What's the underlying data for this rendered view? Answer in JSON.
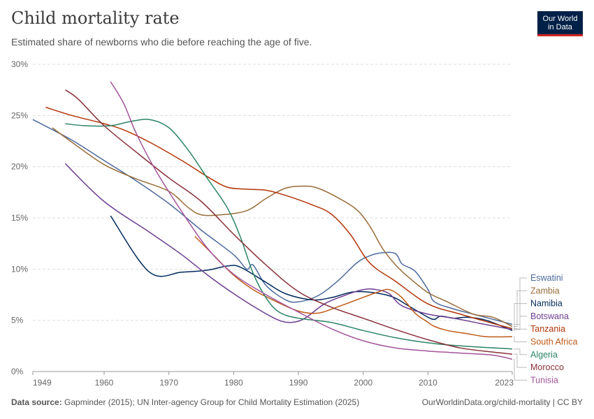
{
  "header": {
    "title": "Child mortality rate",
    "subtitle": "Estimated share of newborns who die before reaching the age of five.",
    "logo_line1": "Our World",
    "logo_line2": "in Data"
  },
  "footer": {
    "source_label": "Data source:",
    "source_text": "Gapminder (2015); UN Inter-agency Group for Child Mortality Estimation (2025)",
    "url_license": "OurWorldinData.org/child-mortality | CC BY"
  },
  "chart_data": {
    "type": "line",
    "title": "Child mortality rate",
    "xlabel": "",
    "ylabel": "",
    "xlim": [
      1949,
      2023
    ],
    "ylim": [
      0,
      30
    ],
    "grid": true,
    "x_ticks": [
      1949,
      1960,
      1970,
      1980,
      1990,
      2000,
      2010,
      2023
    ],
    "y_ticks": [
      0,
      5,
      10,
      15,
      20,
      25,
      30
    ],
    "y_tick_suffix": "%",
    "legend": "right (line-end labels)",
    "series": [
      {
        "name": "Eswatini",
        "color": "#4c6a9c",
        "points": [
          [
            1949,
            24.6
          ],
          [
            1955,
            22.6
          ],
          [
            1960,
            20.6
          ],
          [
            1965,
            18.6
          ],
          [
            1970,
            16.4
          ],
          [
            1975,
            13.8
          ],
          [
            1980,
            11.4
          ],
          [
            1982,
            10.0
          ],
          [
            1983,
            10.4
          ],
          [
            1985,
            8.4
          ],
          [
            1988,
            7.0
          ],
          [
            1990,
            6.8
          ],
          [
            1993,
            7.4
          ],
          [
            1996,
            8.8
          ],
          [
            1999,
            10.6
          ],
          [
            2001,
            11.3
          ],
          [
            2003,
            11.6
          ],
          [
            2005,
            11.5
          ],
          [
            2006,
            10.5
          ],
          [
            2008,
            9.8
          ],
          [
            2010,
            8.0
          ],
          [
            2011,
            6.8
          ],
          [
            2014,
            6.1
          ],
          [
            2017,
            5.6
          ],
          [
            2020,
            5.1
          ],
          [
            2023,
            4.6
          ]
        ]
      },
      {
        "name": "Zambia",
        "color": "#996d39",
        "points": [
          [
            1952,
            23.8
          ],
          [
            1955,
            22.4
          ],
          [
            1960,
            20.2
          ],
          [
            1965,
            18.8
          ],
          [
            1970,
            17.6
          ],
          [
            1973,
            16.0
          ],
          [
            1975,
            15.3
          ],
          [
            1978,
            15.3
          ],
          [
            1982,
            15.7
          ],
          [
            1985,
            16.9
          ],
          [
            1988,
            17.9
          ],
          [
            1991,
            18.1
          ],
          [
            1993,
            17.9
          ],
          [
            1996,
            17.0
          ],
          [
            1999,
            15.8
          ],
          [
            2001,
            14.2
          ],
          [
            2003,
            12.0
          ],
          [
            2005,
            10.4
          ],
          [
            2007,
            9.2
          ],
          [
            2010,
            7.7
          ],
          [
            2013,
            6.8
          ],
          [
            2017,
            5.6
          ],
          [
            2020,
            5.3
          ],
          [
            2023,
            4.4
          ]
        ]
      },
      {
        "name": "Namibia",
        "color": "#00295b",
        "points": [
          [
            1961,
            15.2
          ],
          [
            1967,
            9.7
          ],
          [
            1972,
            9.7
          ],
          [
            1976,
            9.9
          ],
          [
            1979,
            10.3
          ],
          [
            1981,
            10.2
          ],
          [
            1985,
            8.7
          ],
          [
            1988,
            7.6
          ],
          [
            1992,
            7.0
          ],
          [
            1995,
            7.2
          ],
          [
            1999,
            7.8
          ],
          [
            2004,
            7.4
          ],
          [
            2007,
            6.4
          ],
          [
            2010,
            5.3
          ],
          [
            2011,
            5.1
          ],
          [
            2012,
            5.4
          ],
          [
            2014,
            5.2
          ],
          [
            2016,
            5.3
          ],
          [
            2019,
            5.0
          ],
          [
            2023,
            4.0
          ]
        ]
      },
      {
        "name": "Botswana",
        "color": "#6d3e91",
        "points": [
          [
            1954,
            20.3
          ],
          [
            1960,
            16.6
          ],
          [
            1967,
            13.6
          ],
          [
            1972,
            11.4
          ],
          [
            1976,
            9.4
          ],
          [
            1980,
            7.6
          ],
          [
            1984,
            6.0
          ],
          [
            1987,
            5.0
          ],
          [
            1989,
            4.8
          ],
          [
            1991,
            5.2
          ],
          [
            1994,
            6.6
          ],
          [
            1997,
            7.4
          ],
          [
            2000,
            8.0
          ],
          [
            2002,
            8.0
          ],
          [
            2004,
            7.6
          ],
          [
            2006,
            6.4
          ],
          [
            2010,
            5.6
          ],
          [
            2014,
            5.2
          ],
          [
            2018,
            4.7
          ],
          [
            2023,
            4.1
          ]
        ]
      },
      {
        "name": "Tanzania",
        "color": "#b13507",
        "points": [
          [
            1951,
            25.8
          ],
          [
            1955,
            25.0
          ],
          [
            1960,
            24.2
          ],
          [
            1963,
            23.6
          ],
          [
            1967,
            22.4
          ],
          [
            1972,
            20.6
          ],
          [
            1976,
            19.0
          ],
          [
            1979,
            18.0
          ],
          [
            1982,
            17.8
          ],
          [
            1985,
            17.7
          ],
          [
            1988,
            17.2
          ],
          [
            1992,
            16.3
          ],
          [
            1995,
            15.4
          ],
          [
            1998,
            13.4
          ],
          [
            2001,
            10.6
          ],
          [
            2005,
            8.8
          ],
          [
            2010,
            6.6
          ],
          [
            2015,
            5.6
          ],
          [
            2020,
            4.7
          ],
          [
            2023,
            4.2
          ]
        ]
      },
      {
        "name": "South Africa",
        "color": "#c05917",
        "points": [
          [
            1974,
            13.2
          ],
          [
            1977,
            11.3
          ],
          [
            1980,
            9.4
          ],
          [
            1983,
            8.0
          ],
          [
            1986,
            7.0
          ],
          [
            1990,
            5.9
          ],
          [
            1993,
            5.7
          ],
          [
            1996,
            6.3
          ],
          [
            1999,
            7.0
          ],
          [
            2002,
            7.7
          ],
          [
            2004,
            8.0
          ],
          [
            2006,
            7.2
          ],
          [
            2008,
            5.7
          ],
          [
            2010,
            4.8
          ],
          [
            2011,
            4.4
          ],
          [
            2013,
            4.0
          ],
          [
            2016,
            3.7
          ],
          [
            2019,
            3.4
          ],
          [
            2023,
            3.4
          ]
        ]
      },
      {
        "name": "Algeria",
        "color": "#2c8465",
        "points": [
          [
            1954,
            24.2
          ],
          [
            1957,
            24.0
          ],
          [
            1961,
            24.0
          ],
          [
            1964,
            24.4
          ],
          [
            1967,
            24.6
          ],
          [
            1970,
            23.8
          ],
          [
            1973,
            21.6
          ],
          [
            1976,
            18.8
          ],
          [
            1979,
            16.0
          ],
          [
            1981,
            13.2
          ],
          [
            1983,
            9.6
          ],
          [
            1985,
            7.2
          ],
          [
            1987,
            5.8
          ],
          [
            1990,
            5.2
          ],
          [
            1995,
            4.8
          ],
          [
            2000,
            4.0
          ],
          [
            2005,
            3.3
          ],
          [
            2010,
            2.8
          ],
          [
            2015,
            2.5
          ],
          [
            2023,
            2.2
          ]
        ]
      },
      {
        "name": "Morocco",
        "color": "#883039",
        "points": [
          [
            1954,
            27.5
          ],
          [
            1956,
            26.6
          ],
          [
            1960,
            24.0
          ],
          [
            1965,
            21.4
          ],
          [
            1970,
            18.9
          ],
          [
            1975,
            16.6
          ],
          [
            1980,
            13.4
          ],
          [
            1985,
            10.4
          ],
          [
            1990,
            7.8
          ],
          [
            1995,
            6.3
          ],
          [
            2000,
            5.2
          ],
          [
            2005,
            4.1
          ],
          [
            2010,
            3.1
          ],
          [
            2015,
            2.3
          ],
          [
            2020,
            1.9
          ],
          [
            2023,
            1.7
          ]
        ]
      },
      {
        "name": "Tunisia",
        "color": "#a2559c",
        "points": [
          [
            1961,
            28.3
          ],
          [
            1963,
            26.2
          ],
          [
            1965,
            23.2
          ],
          [
            1968,
            19.6
          ],
          [
            1972,
            15.6
          ],
          [
            1976,
            12.0
          ],
          [
            1980,
            9.5
          ],
          [
            1985,
            7.5
          ],
          [
            1990,
            5.8
          ],
          [
            1995,
            4.2
          ],
          [
            2000,
            3.0
          ],
          [
            2005,
            2.3
          ],
          [
            2010,
            2.0
          ],
          [
            2015,
            1.8
          ],
          [
            2020,
            1.6
          ],
          [
            2023,
            1.2
          ]
        ]
      }
    ]
  }
}
